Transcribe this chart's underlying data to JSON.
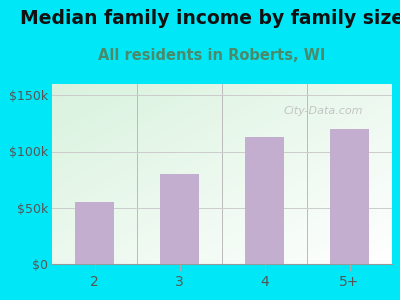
{
  "title": "Median family income by family size",
  "subtitle": "All residents in Roberts, WI",
  "categories": [
    "2",
    "3",
    "4",
    "5+"
  ],
  "values": [
    55000,
    80000,
    113000,
    120000
  ],
  "bar_color": "#c4aed0",
  "title_fontsize": 13.5,
  "subtitle_fontsize": 10.5,
  "subtitle_color": "#4a8a6a",
  "title_color": "#111111",
  "background_outer": "#00e8f8",
  "ylim": [
    0,
    160000
  ],
  "yticks": [
    0,
    50000,
    100000,
    150000
  ],
  "ytick_labels": [
    "$0",
    "$50k",
    "$100k",
    "$150k"
  ],
  "watermark": "City-Data.com",
  "tick_color": "#555555"
}
